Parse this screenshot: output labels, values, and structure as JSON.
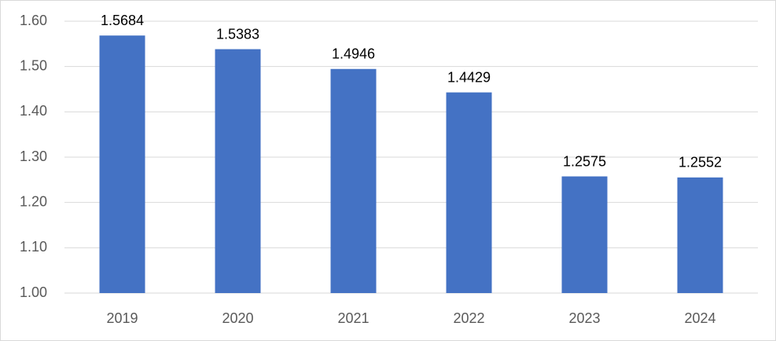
{
  "chart_data": {
    "type": "bar",
    "categories": [
      "2019",
      "2020",
      "2021",
      "2022",
      "2023",
      "2024"
    ],
    "values": [
      1.5684,
      1.5383,
      1.4946,
      1.4429,
      1.2575,
      1.2552
    ],
    "color": "#4472c4",
    "ylim": [
      1.0,
      1.6
    ],
    "yticks": [
      {
        "value": 1.0,
        "label": "1.00"
      },
      {
        "value": 1.1,
        "label": "1.10"
      },
      {
        "value": 1.2,
        "label": "1.20"
      },
      {
        "value": 1.3,
        "label": "1.30"
      },
      {
        "value": 1.4,
        "label": "1.40"
      },
      {
        "value": 1.5,
        "label": "1.50"
      },
      {
        "value": 1.6,
        "label": "1.60"
      }
    ],
    "grid": true
  }
}
